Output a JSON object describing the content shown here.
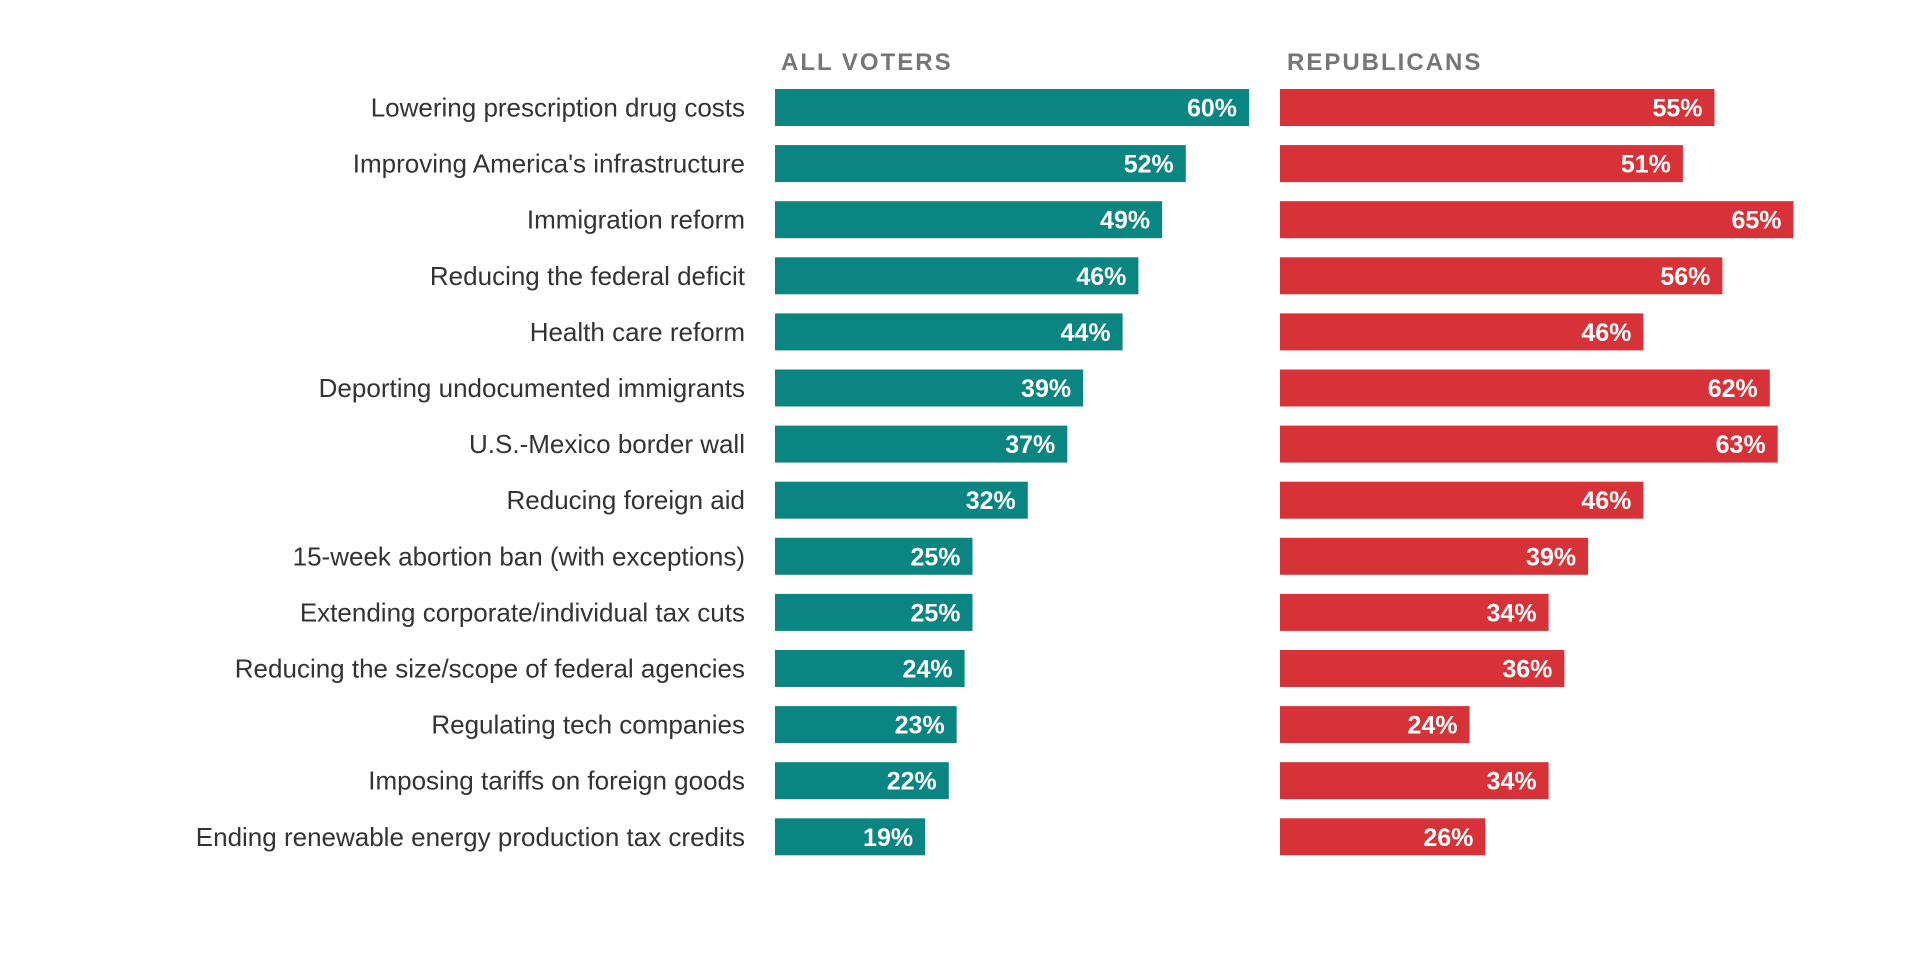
{
  "chart_data": {
    "type": "bar",
    "orientation": "horizontal",
    "value_format": "percent",
    "xlim": [
      0,
      100
    ],
    "grid": false,
    "legend": "none",
    "categories": [
      "Lowering prescription drug costs",
      "Improving America's infrastructure",
      "Immigration reform",
      "Reducing the federal deficit",
      "Health care reform",
      "Deporting undocumented immigrants",
      "U.S.-Mexico border wall",
      "Reducing foreign aid",
      "15-week abortion ban (with exceptions)",
      "Extending corporate/individual tax cuts",
      "Reducing the size/scope of federal agencies",
      "Regulating tech companies",
      "Imposing tariffs on foreign goods",
      "Ending renewable energy production tax credits"
    ],
    "series": [
      {
        "name": "ALL VOTERS",
        "color": "#0a8582",
        "values": [
          60,
          52,
          49,
          46,
          44,
          39,
          37,
          32,
          25,
          25,
          24,
          23,
          22,
          19
        ]
      },
      {
        "name": "REPUBLICANS",
        "color": "#d63237",
        "values": [
          55,
          51,
          65,
          56,
          46,
          62,
          63,
          46,
          39,
          34,
          36,
          24,
          34,
          26
        ]
      }
    ]
  }
}
